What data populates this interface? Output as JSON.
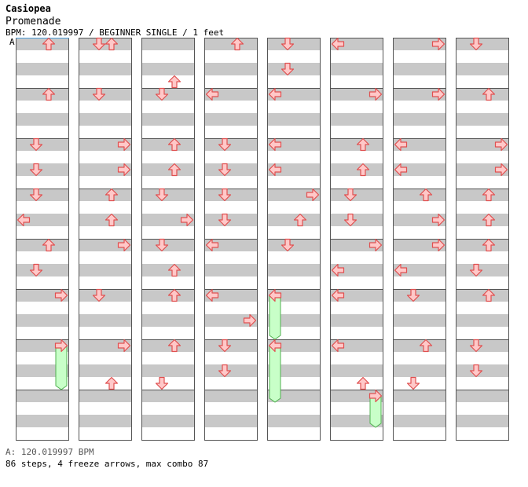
{
  "header": {
    "artist": "Casiopea",
    "title": "Promenade",
    "info": "BPM: 120.019997 / BEGINNER SINGLE / 1 feet",
    "bpm_marker": "A"
  },
  "footer": {
    "bpm_note": "A: 120.019997 BPM",
    "stats": "86 steps, 4 freeze arrows, max combo 87"
  },
  "colors": {
    "band": "#c8c8c8",
    "border": "#555555",
    "arrow_fill": "#ffc8c8",
    "arrow_stroke": "#e05050",
    "freeze_fill": "#c8ffc8",
    "freeze_stroke": "#50b050",
    "bpm_line": "#4a9bd8"
  },
  "steps": [
    {
      "m": 0,
      "b": 0.5,
      "d": "U"
    },
    {
      "m": 1,
      "b": 0.5,
      "d": "U"
    },
    {
      "m": 2,
      "b": 0.5,
      "d": "D"
    },
    {
      "m": 2,
      "b": 2.5,
      "d": "D"
    },
    {
      "m": 3,
      "b": 0.5,
      "d": "D"
    },
    {
      "m": 3,
      "b": 2.5,
      "d": "L"
    },
    {
      "m": 4,
      "b": 0.5,
      "d": "U"
    },
    {
      "m": 4,
      "b": 2.5,
      "d": "D"
    },
    {
      "m": 5,
      "b": 0.5,
      "d": "R"
    },
    {
      "m": 6,
      "b": 0.5,
      "d": "R",
      "freeze": 3.5
    },
    {
      "m": 8,
      "b": 0.5,
      "d": "D"
    },
    {
      "m": 8,
      "b": 0.5,
      "d": "U"
    },
    {
      "m": 9,
      "b": 0.5,
      "d": "D"
    },
    {
      "m": 10,
      "b": 0.5,
      "d": "R"
    },
    {
      "m": 10,
      "b": 2.5,
      "d": "R"
    },
    {
      "m": 11,
      "b": 0.5,
      "d": "U"
    },
    {
      "m": 11,
      "b": 2.5,
      "d": "U"
    },
    {
      "m": 12,
      "b": 0.5,
      "d": "R"
    },
    {
      "m": 13,
      "b": 0.5,
      "d": "D"
    },
    {
      "m": 14,
      "b": 0.5,
      "d": "R"
    },
    {
      "m": 14,
      "b": 3.5,
      "d": "U"
    },
    {
      "m": 16,
      "b": 3.5,
      "d": "U"
    },
    {
      "m": 17,
      "b": 0.5,
      "d": "D"
    },
    {
      "m": 18,
      "b": 0.5,
      "d": "U"
    },
    {
      "m": 18,
      "b": 2.5,
      "d": "U"
    },
    {
      "m": 19,
      "b": 0.5,
      "d": "D"
    },
    {
      "m": 19,
      "b": 2.5,
      "d": "R"
    },
    {
      "m": 20,
      "b": 0.5,
      "d": "D"
    },
    {
      "m": 20,
      "b": 2.5,
      "d": "U"
    },
    {
      "m": 21,
      "b": 0.5,
      "d": "U"
    },
    {
      "m": 22,
      "b": 0.5,
      "d": "U"
    },
    {
      "m": 22,
      "b": 3.5,
      "d": "D"
    },
    {
      "m": 24,
      "b": 0.5,
      "d": "U"
    },
    {
      "m": 25,
      "b": 0.5,
      "d": "L"
    },
    {
      "m": 26,
      "b": 0.5,
      "d": "D"
    },
    {
      "m": 26,
      "b": 2.5,
      "d": "D"
    },
    {
      "m": 27,
      "b": 0.5,
      "d": "D"
    },
    {
      "m": 27,
      "b": 2.5,
      "d": "D"
    },
    {
      "m": 28,
      "b": 0.5,
      "d": "L"
    },
    {
      "m": 29,
      "b": 0.5,
      "d": "L"
    },
    {
      "m": 29,
      "b": 2.5,
      "d": "R"
    },
    {
      "m": 30,
      "b": 0.5,
      "d": "D"
    },
    {
      "m": 30,
      "b": 2.5,
      "d": "D"
    },
    {
      "m": 32,
      "b": 0.5,
      "d": "D"
    },
    {
      "m": 32,
      "b": 2.5,
      "d": "D"
    },
    {
      "m": 33,
      "b": 0.5,
      "d": "L"
    },
    {
      "m": 34,
      "b": 0.5,
      "d": "L"
    },
    {
      "m": 34,
      "b": 2.5,
      "d": "L"
    },
    {
      "m": 35,
      "b": 0.5,
      "d": "R"
    },
    {
      "m": 35,
      "b": 2.5,
      "d": "U"
    },
    {
      "m": 36,
      "b": 0.5,
      "d": "D"
    },
    {
      "m": 37,
      "b": 0.5,
      "d": "L",
      "freeze": 3.5
    },
    {
      "m": 38,
      "b": 0.5,
      "d": "L",
      "freeze": 4.5
    },
    {
      "m": 40,
      "b": 0.5,
      "d": "L"
    },
    {
      "m": 41,
      "b": 0.5,
      "d": "R"
    },
    {
      "m": 42,
      "b": 0.5,
      "d": "U"
    },
    {
      "m": 42,
      "b": 2.5,
      "d": "U"
    },
    {
      "m": 43,
      "b": 0.5,
      "d": "D"
    },
    {
      "m": 43,
      "b": 2.5,
      "d": "D"
    },
    {
      "m": 44,
      "b": 0.5,
      "d": "R"
    },
    {
      "m": 44,
      "b": 2.5,
      "d": "L"
    },
    {
      "m": 45,
      "b": 0.5,
      "d": "L"
    },
    {
      "m": 46,
      "b": 0.5,
      "d": "L"
    },
    {
      "m": 46,
      "b": 3.5,
      "d": "U"
    },
    {
      "m": 47,
      "b": 0.5,
      "d": "R",
      "freeze": 2.5
    },
    {
      "m": 48,
      "b": 0.5,
      "d": "R"
    },
    {
      "m": 49,
      "b": 0.5,
      "d": "R"
    },
    {
      "m": 50,
      "b": 0.5,
      "d": "L"
    },
    {
      "m": 50,
      "b": 2.5,
      "d": "L"
    },
    {
      "m": 51,
      "b": 0.5,
      "d": "U"
    },
    {
      "m": 51,
      "b": 2.5,
      "d": "R"
    },
    {
      "m": 52,
      "b": 0.5,
      "d": "R"
    },
    {
      "m": 52,
      "b": 2.5,
      "d": "L"
    },
    {
      "m": 53,
      "b": 0.5,
      "d": "D"
    },
    {
      "m": 54,
      "b": 0.5,
      "d": "U"
    },
    {
      "m": 54,
      "b": 3.5,
      "d": "D"
    },
    {
      "m": 56,
      "b": 0.5,
      "d": "D"
    },
    {
      "m": 57,
      "b": 0.5,
      "d": "U"
    },
    {
      "m": 58,
      "b": 0.5,
      "d": "R"
    },
    {
      "m": 58,
      "b": 2.5,
      "d": "R"
    },
    {
      "m": 59,
      "b": 0.5,
      "d": "U"
    },
    {
      "m": 59,
      "b": 2.5,
      "d": "U"
    },
    {
      "m": 60,
      "b": 0.5,
      "d": "U"
    },
    {
      "m": 60,
      "b": 2.5,
      "d": "D"
    },
    {
      "m": 61,
      "b": 0.5,
      "d": "U"
    },
    {
      "m": 62,
      "b": 0.5,
      "d": "D"
    },
    {
      "m": 62,
      "b": 2.5,
      "d": "D"
    }
  ]
}
